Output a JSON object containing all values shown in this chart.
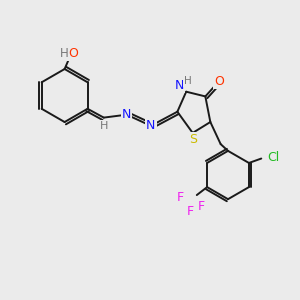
{
  "background_color": "#ebebeb",
  "bond_color": "#1a1a1a",
  "atom_colors": {
    "O": "#ff3300",
    "N": "#1414ff",
    "S": "#ccbb00",
    "Cl": "#22bb22",
    "F": "#ee22ee",
    "H": "#777777",
    "C": "#1a1a1a"
  },
  "font_size": 9,
  "figsize": [
    3.0,
    3.0
  ],
  "dpi": 100
}
